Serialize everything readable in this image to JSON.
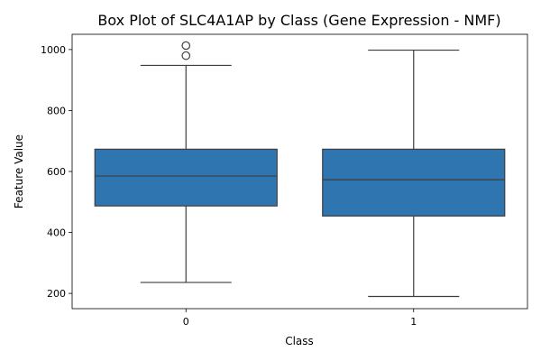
{
  "chart_data": {
    "type": "box",
    "title": "Box Plot of SLC4A1AP by Class (Gene Expression - NMF)",
    "xlabel": "Class",
    "ylabel": "Feature Value",
    "categories": [
      "0",
      "1"
    ],
    "ylim": [
      150,
      1050
    ],
    "yticks": [
      200,
      400,
      600,
      800,
      1000
    ],
    "grid": false,
    "boxes": [
      {
        "category": "0",
        "whisker_low": 236,
        "q1": 487,
        "median": 585,
        "q3": 673,
        "whisker_high": 948,
        "outliers": [
          980,
          1013
        ]
      },
      {
        "category": "1",
        "whisker_low": 190,
        "q1": 454,
        "median": 573,
        "q3": 673,
        "whisker_high": 998,
        "outliers": []
      }
    ],
    "colors": {
      "box_fill": "#2f75b0",
      "line": "#3d3d3d",
      "axis": "#000000"
    }
  }
}
